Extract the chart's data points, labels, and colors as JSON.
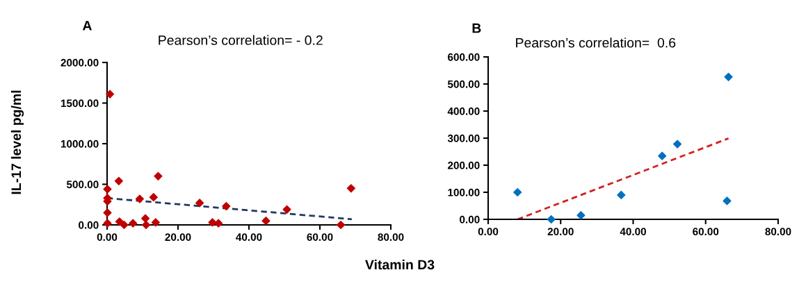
{
  "chart_data": [
    {
      "type": "scatter",
      "title": "A",
      "xlabel": "Vitamin D3",
      "ylabel": "IL-17 level pg/ml",
      "annotations": [
        "Pearson’s correlation= - 0.2"
      ],
      "marker": "diamond",
      "grid": false,
      "legend": false,
      "xlim": [
        0,
        80
      ],
      "xticks": [
        {
          "value": 0,
          "label": "0.00"
        },
        {
          "value": 20,
          "label": "20.00"
        },
        {
          "value": 40,
          "label": "40.00"
        },
        {
          "value": 60,
          "label": "60.00"
        },
        {
          "value": 80,
          "label": "80.00"
        }
      ],
      "ylim": [
        0,
        2000
      ],
      "yticks": [
        {
          "value": 0,
          "label": "0.00"
        },
        {
          "value": 500,
          "label": "500.00"
        },
        {
          "value": 1000,
          "label": "1000.00"
        },
        {
          "value": 1500,
          "label": "1500.00"
        },
        {
          "value": 2000,
          "label": "2000.00"
        }
      ],
      "series": [
        {
          "color": "#c00000",
          "x": [
            0.1,
            0.8,
            3.3,
            14.4,
            0.1,
            0.1,
            0.1,
            0.1,
            9.2,
            13.1,
            3.5,
            4.8,
            7.3,
            10.8,
            11.0,
            13.7,
            26.1,
            29.7,
            31.4,
            33.6,
            44.8,
            50.7,
            68.8,
            65.9
          ],
          "values": [
            440,
            1610,
            540,
            600,
            330,
            290,
            150,
            20,
            320,
            340,
            40,
            0,
            20,
            80,
            0,
            30,
            270,
            30,
            20,
            230,
            50,
            190,
            450,
            0
          ]
        },
        {
          "type": "line",
          "color": "#1f3864",
          "line_style": "dashed",
          "marker": "none",
          "x": [
            0,
            69
          ],
          "values": [
            330,
            70
          ]
        }
      ]
    },
    {
      "type": "scatter",
      "title": "B",
      "annotations": [
        "Pearson’s correlation=  0.6"
      ],
      "marker": "diamond",
      "grid": false,
      "legend": false,
      "xlim": [
        0,
        80
      ],
      "xticks": [
        {
          "value": 0,
          "label": "0.00"
        },
        {
          "value": 20,
          "label": "20.00"
        },
        {
          "value": 40,
          "label": "40.00"
        },
        {
          "value": 60,
          "label": "60.00"
        },
        {
          "value": 80,
          "label": "80.00"
        }
      ],
      "ylim": [
        0,
        600
      ],
      "yticks": [
        {
          "value": 0,
          "label": "0.00"
        },
        {
          "value": 100,
          "label": "100.00"
        },
        {
          "value": 200,
          "label": "200.00"
        },
        {
          "value": 300,
          "label": "300.00"
        },
        {
          "value": 400,
          "label": "400.00"
        },
        {
          "value": 500,
          "label": "500.00"
        },
        {
          "value": 600,
          "label": "600.00"
        }
      ],
      "series": [
        {
          "color": "#0070c0",
          "x": [
            8.1,
            17.4,
            25.6,
            36.7,
            48.0,
            52.2,
            66.3,
            65.9
          ],
          "values": [
            100,
            0,
            15,
            90,
            234,
            278,
            526,
            68
          ]
        },
        {
          "type": "line",
          "color": "#d42020",
          "line_style": "dashed",
          "marker": "none",
          "x": [
            8.1,
            66.3
          ],
          "values": [
            0,
            299
          ]
        }
      ]
    }
  ]
}
